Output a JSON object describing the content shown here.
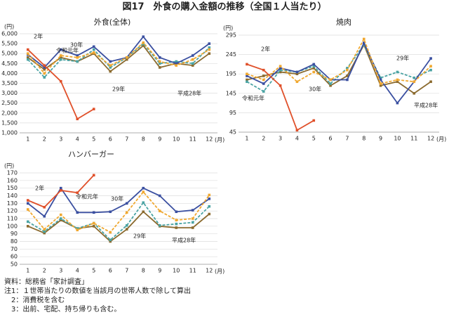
{
  "title": "図17　外食の購入金額の推移（全国１人当たり）",
  "notes": [
    "資料：総務省「家計調査」",
    "注1：１世帯当たりの数値を当該月の世帯人数で除して算出",
    "　2：消費税を含む",
    "　3：出前、宅配、持ち帰りも含む。"
  ],
  "chart_data": [
    {
      "type": "line",
      "title": "外食(全体)",
      "y_unit": "(円)",
      "x_unit": "(月)",
      "grid": true,
      "categories": [
        "1",
        "2",
        "3",
        "4",
        "5",
        "6",
        "7",
        "8",
        "9",
        "10",
        "11",
        "12"
      ],
      "ylim": [
        1000,
        6000
      ],
      "yticks": [
        {
          "value": 1000,
          "label": "1,000"
        },
        {
          "value": 1500,
          "label": "1,500"
        },
        {
          "value": 2000,
          "label": "2,000"
        },
        {
          "value": 2500,
          "label": "2,500"
        },
        {
          "value": 3000,
          "label": "3,000"
        },
        {
          "value": 3500,
          "label": "3,500"
        },
        {
          "value": 4000,
          "label": "4,000"
        },
        {
          "value": 4500,
          "label": "4,500"
        },
        {
          "value": 5000,
          "label": "5,000"
        },
        {
          "value": 5500,
          "label": "5,500"
        },
        {
          "value": 6000,
          "label": "6,000"
        }
      ],
      "series": [
        {
          "name": "平成28年",
          "color": "#8b6a2e",
          "dash": false,
          "values": [
            4800,
            4200,
            4800,
            4600,
            5000,
            4100,
            4700,
            5400,
            4300,
            4500,
            4400,
            5000
          ]
        },
        {
          "name": "29年",
          "color": "#4aa3a3",
          "dash": true,
          "values": [
            4700,
            3800,
            4700,
            4600,
            5200,
            4300,
            4800,
            5500,
            4500,
            4600,
            4500,
            5300
          ]
        },
        {
          "name": "30年",
          "color": "#3a4fa0",
          "dash": false,
          "values": [
            4950,
            4300,
            5200,
            4900,
            5350,
            4600,
            4800,
            5850,
            4800,
            4500,
            4900,
            5500
          ]
        },
        {
          "name": "令和元年",
          "color": "#f0a830",
          "dash": true,
          "values": [
            5000,
            4000,
            4900,
            4800,
            5050,
            4400,
            4800,
            5550,
            4600,
            4400,
            4700,
            5200
          ]
        },
        {
          "name": "2年",
          "color": "#e0502a",
          "dash": false,
          "values": [
            5200,
            4400,
            3600,
            1700,
            2200,
            null,
            null,
            null,
            null,
            null,
            null,
            null
          ]
        }
      ]
    },
    {
      "type": "line",
      "title": "焼肉",
      "y_unit": "(円)",
      "x_unit": "(月)",
      "grid": true,
      "categories": [
        "1",
        "2",
        "3",
        "4",
        "5",
        "6",
        "7",
        "8",
        "9",
        "10",
        "11",
        "12"
      ],
      "ylim": [
        45,
        295
      ],
      "yticks": [
        45,
        95,
        145,
        195,
        245,
        295
      ],
      "series": [
        {
          "name": "平成28年",
          "color": "#8b6a2e",
          "dash": false,
          "values": [
            180,
            190,
            200,
            195,
            210,
            165,
            190,
            270,
            165,
            175,
            145,
            175
          ]
        },
        {
          "name": "29年",
          "color": "#4aa3a3",
          "dash": true,
          "values": [
            175,
            150,
            205,
            200,
            215,
            170,
            210,
            270,
            185,
            200,
            185,
            205
          ]
        },
        {
          "name": "30年",
          "color": "#3a4fa0",
          "dash": false,
          "values": [
            190,
            170,
            210,
            200,
            220,
            180,
            180,
            275,
            180,
            120,
            175,
            235
          ]
        },
        {
          "name": "令和元年",
          "color": "#f0a830",
          "dash": true,
          "values": [
            195,
            180,
            215,
            175,
            200,
            180,
            205,
            285,
            170,
            180,
            175,
            215
          ]
        },
        {
          "name": "2年",
          "color": "#e0502a",
          "dash": false,
          "values": [
            220,
            205,
            165,
            50,
            75,
            null,
            null,
            null,
            null,
            null,
            null,
            null
          ]
        }
      ]
    },
    {
      "type": "line",
      "title": "ハンバーガー",
      "y_unit": "(円)",
      "x_unit": "(月)",
      "grid": true,
      "categories": [
        "1",
        "2",
        "3",
        "4",
        "5",
        "6",
        "7",
        "8",
        "9",
        "10",
        "11",
        "12"
      ],
      "ylim": [
        50,
        170
      ],
      "yticks": [
        50,
        60,
        70,
        80,
        90,
        100,
        110,
        120,
        130,
        140,
        150,
        160,
        170
      ],
      "series": [
        {
          "name": "平成28年",
          "color": "#8b6a2e",
          "dash": false,
          "values": [
            100,
            91,
            108,
            97,
            100,
            80,
            96,
            119,
            100,
            98,
            98,
            116
          ]
        },
        {
          "name": "29年",
          "color": "#4aa3a3",
          "dash": true,
          "values": [
            106,
            93,
            110,
            97,
            104,
            82,
            101,
            131,
            101,
            103,
            105,
            126
          ]
        },
        {
          "name": "30年",
          "color": "#3a4fa0",
          "dash": false,
          "values": [
            130,
            113,
            150,
            118,
            118,
            119,
            130,
            150,
            140,
            119,
            121,
            136
          ]
        },
        {
          "name": "令和元年",
          "color": "#f0a830",
          "dash": true,
          "values": [
            122,
            96,
            115,
            95,
            104,
            92,
            118,
            145,
            120,
            108,
            110,
            141
          ]
        },
        {
          "name": "2年",
          "color": "#e0502a",
          "dash": false,
          "values": [
            134,
            125,
            147,
            144,
            167,
            null,
            null,
            null,
            null,
            null,
            null,
            null
          ]
        }
      ]
    }
  ]
}
